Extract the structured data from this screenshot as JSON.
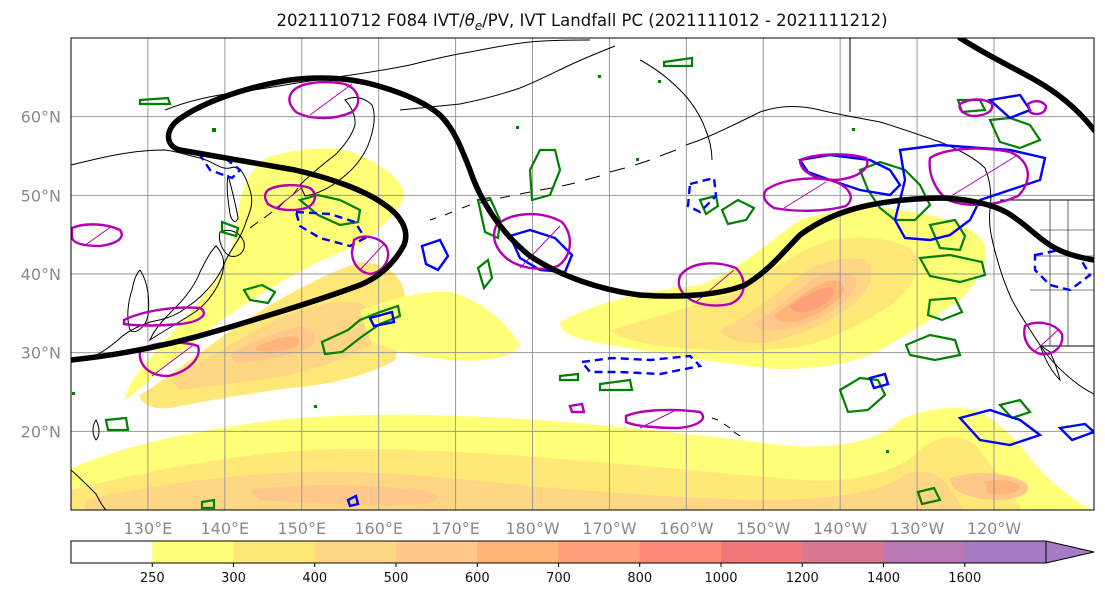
{
  "title": {
    "prefix": "2021110712 F084 IVT/",
    "theta_symbol": "θ",
    "theta_subscript": "e",
    "suffix": "/PV, IVT Landfall PC (2021111012 - 2021111212)"
  },
  "map": {
    "projection": "cylindrical",
    "lon_range_deg_east": [
      120,
      253
    ],
    "lat_range_deg_north": [
      10,
      70
    ],
    "background": "#ffffff",
    "coastline_color": "#000000",
    "gridlines": true,
    "lat_ticks": [
      {
        "lat": 20,
        "label": "20°N"
      },
      {
        "lat": 30,
        "label": "30°N"
      },
      {
        "lat": 40,
        "label": "40°N"
      },
      {
        "lat": 50,
        "label": "50°N"
      },
      {
        "lat": 60,
        "label": "60°N"
      }
    ],
    "lon_ticks": [
      {
        "lon": 130,
        "label": "130°E"
      },
      {
        "lon": 140,
        "label": "140°E"
      },
      {
        "lon": 150,
        "label": "150°E"
      },
      {
        "lon": 160,
        "label": "160°E"
      },
      {
        "lon": 170,
        "label": "170°E"
      },
      {
        "lon": 180,
        "label": "180°W"
      },
      {
        "lon": 190,
        "label": "170°W"
      },
      {
        "lon": 200,
        "label": "160°W"
      },
      {
        "lon": 210,
        "label": "150°W"
      },
      {
        "lon": 220,
        "label": "140°W"
      },
      {
        "lon": 230,
        "label": "130°W"
      },
      {
        "lon": 240,
        "label": "120°W"
      }
    ]
  },
  "legend": {
    "colorbar_levels": [
      "250",
      "300",
      "400",
      "500",
      "600",
      "700",
      "800",
      "1000",
      "1200",
      "1400",
      "1600"
    ],
    "colorbar_colors": [
      "#ffffff",
      "#ffff78",
      "#ffe878",
      "#ffd684",
      "#ffc88a",
      "#ffb478",
      "#ffa07a",
      "#ff8878",
      "#f07878",
      "#d87890",
      "#b87ab4",
      "#a57cc4"
    ],
    "extend": "max"
  },
  "overlays": {
    "contour_colors": {
      "jet_line": "#000000",
      "pv_positive": "#b400b4",
      "theta_e": "#008000",
      "ivt_anomaly": "#0000ff"
    }
  }
}
